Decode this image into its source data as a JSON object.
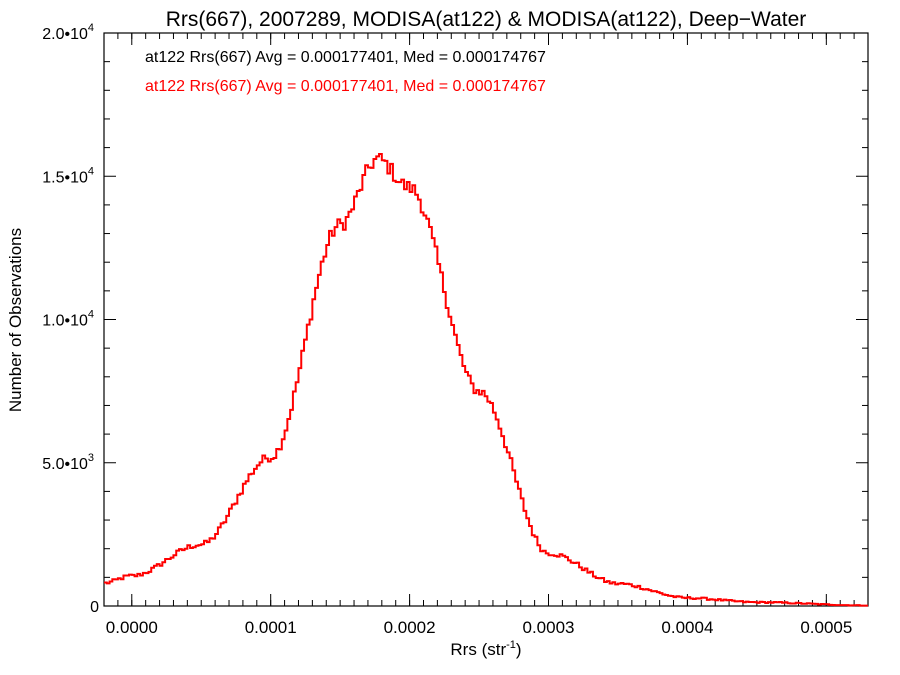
{
  "chart_data": {
    "type": "histogram",
    "title": "Rrs(667), 2007289, MODISA(at122) & MODISA(at122), Deep−Water",
    "xlabel": "Rrs (str",
    "xlabel_superscript": "-1",
    "xlabel_suffix": ")",
    "ylabel": "Number of Observations",
    "xlim": [
      -2e-05,
      0.00053
    ],
    "ylim": [
      0,
      20000
    ],
    "x_ticks": [
      0,
      0.0001,
      0.0002,
      0.0003,
      0.0004,
      0.0005
    ],
    "x_tick_labels": [
      "0.0000",
      "0.0001",
      "0.0002",
      "0.0003",
      "0.0004",
      "0.0005"
    ],
    "y_ticks": [
      {
        "value": 0,
        "base": "0",
        "exp": ""
      },
      {
        "value": 5000,
        "base": "5.0•10",
        "exp": "3"
      },
      {
        "value": 10000,
        "base": "1.0•10",
        "exp": "4"
      },
      {
        "value": 15000,
        "base": "1.5•10",
        "exp": "4"
      },
      {
        "value": 20000,
        "base": "2.0•10",
        "exp": "4"
      }
    ],
    "annotations": [
      {
        "text": "at122 Rrs(667) Avg = 0.000177401, Med = 0.000174767",
        "color": "#000000"
      },
      {
        "text": "at122 Rrs(667) Avg = 0.000177401, Med = 0.000174767",
        "color": "#ff0000"
      }
    ],
    "series": [
      {
        "color": "#ff0000",
        "bin_width": 2e-06,
        "x_start": -2e-05,
        "x_end": 0.00053,
        "peak_x": 0.000177,
        "peak_y": 15600,
        "left_anchors": [
          [
            -2e-05,
            800
          ],
          [
            0.0,
            1050
          ],
          [
            5e-05,
            2150
          ],
          [
            0.0001,
            5200
          ],
          [
            0.00015,
            13300
          ],
          [
            0.000177,
            15600
          ]
        ],
        "right_anchors": [
          [
            0.000177,
            15600
          ],
          [
            0.0002,
            14600
          ],
          [
            0.00025,
            7500
          ],
          [
            0.0003,
            1850
          ],
          [
            0.00035,
            780
          ],
          [
            0.0004,
            280
          ],
          [
            0.00045,
            130
          ],
          [
            0.00053,
            20
          ]
        ]
      }
    ]
  }
}
